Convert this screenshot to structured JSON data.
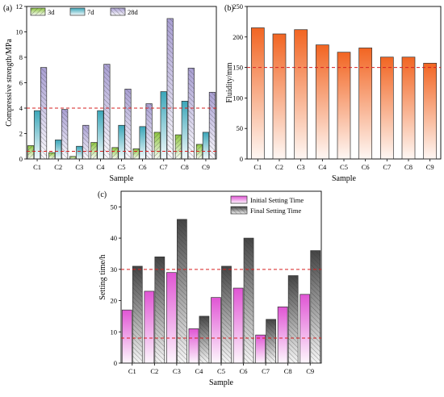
{
  "chart_data": [
    {
      "panel": "(a)",
      "type": "bar",
      "xlabel": "Sample",
      "ylabel": "Compressive strength/MPa",
      "ylim": [
        0,
        12
      ],
      "yticks": [
        0,
        2,
        4,
        6,
        8,
        10,
        12
      ],
      "categories": [
        "C1",
        "C2",
        "C3",
        "C4",
        "C5",
        "C6",
        "C7",
        "C8",
        "C9"
      ],
      "series": [
        {
          "name": "3d",
          "values": [
            1.05,
            0.5,
            0.2,
            1.3,
            0.9,
            0.8,
            2.1,
            1.9,
            1.15
          ],
          "color": "#8dc63f"
        },
        {
          "name": "7d",
          "values": [
            3.8,
            1.5,
            1.0,
            3.8,
            2.65,
            2.55,
            5.3,
            4.55,
            2.1
          ],
          "color": "#5ab4c5"
        },
        {
          "name": "28d",
          "values": [
            7.2,
            3.9,
            2.65,
            7.45,
            5.5,
            4.35,
            11.05,
            7.15,
            5.25
          ],
          "color": "#a99fd3"
        }
      ],
      "reference_lines": [
        4,
        0.6
      ],
      "legend": "top-left"
    },
    {
      "panel": "(b)",
      "type": "bar",
      "xlabel": "Sample",
      "ylabel": "Fluidity/mm",
      "ylim": [
        0,
        250
      ],
      "yticks": [
        0,
        50,
        100,
        150,
        200,
        250
      ],
      "categories": [
        "C1",
        "C2",
        "C3",
        "C4",
        "C5",
        "C6",
        "C7",
        "C8",
        "C9"
      ],
      "series": [
        {
          "values": [
            215,
            205,
            212,
            187,
            175,
            182,
            167,
            167,
            157
          ],
          "color": "#f26522"
        }
      ],
      "reference_lines": [
        150
      ]
    },
    {
      "panel": "(c)",
      "type": "bar",
      "xlabel": "Sample",
      "ylabel": "Setting time/h",
      "ylim": [
        0,
        55
      ],
      "yticks": [
        0,
        10,
        20,
        30,
        40,
        50
      ],
      "categories": [
        "C1",
        "C2",
        "C3",
        "C4",
        "C5",
        "C6",
        "C7",
        "C8",
        "C9"
      ],
      "series": [
        {
          "name": "Initial Setting Time",
          "values": [
            17,
            23,
            29,
            11,
            21,
            24,
            9,
            18,
            22
          ],
          "color": "#e889e0"
        },
        {
          "name": "Final Setting Time",
          "values": [
            31,
            34,
            46,
            15,
            31,
            40,
            14,
            28,
            36
          ],
          "color": "#555555"
        }
      ],
      "reference_lines": [
        30,
        8
      ],
      "legend": "top-right"
    }
  ]
}
